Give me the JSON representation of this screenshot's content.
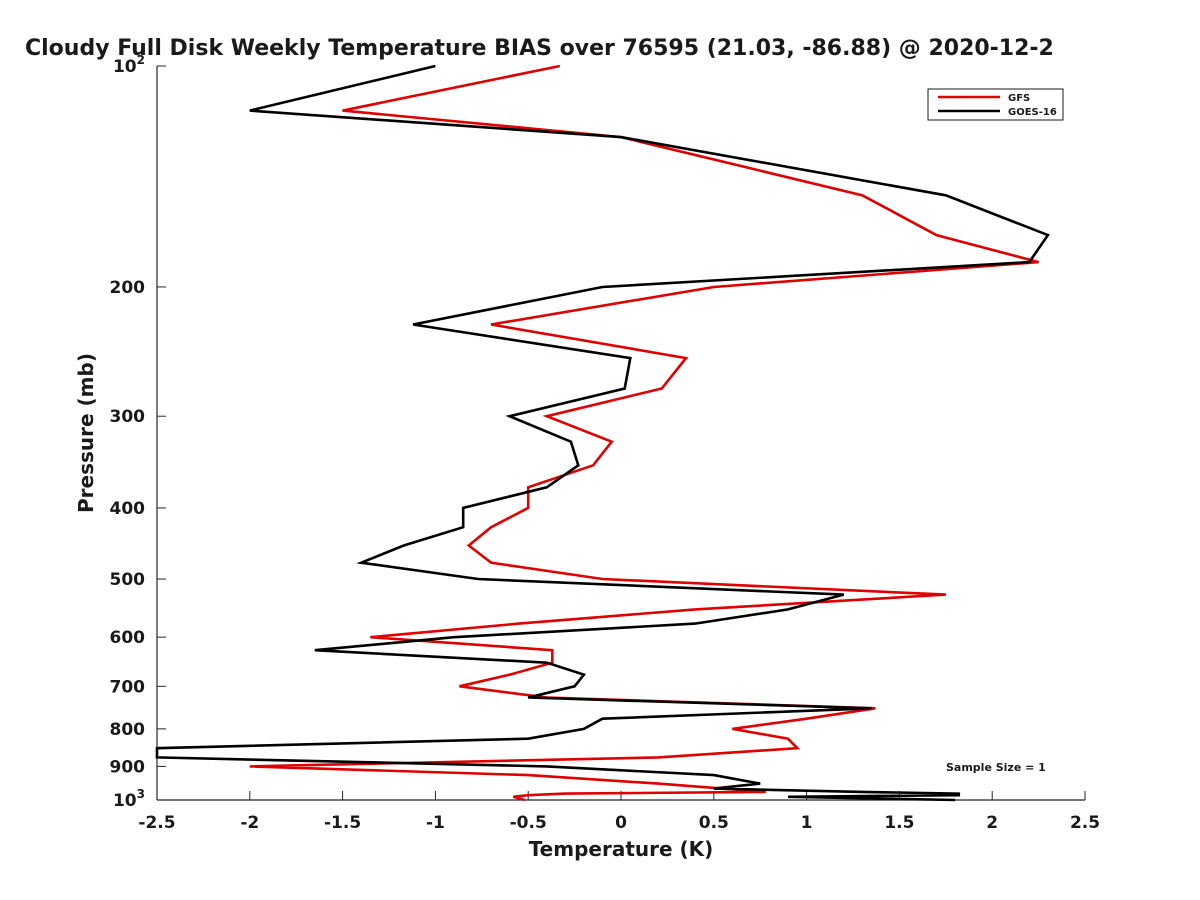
{
  "chart_data": {
    "type": "line",
    "title": "Cloudy Full Disk Weekly Temperature BIAS over 76595 (21.03, -86.88) @ 2020-12-2",
    "xlabel": "Temperature (K)",
    "ylabel": "Pressure (mb)",
    "xlim": [
      -2.5,
      2.5
    ],
    "ylim": [
      100,
      1000
    ],
    "y_scale": "log",
    "y_reversed": true,
    "x_ticks": [
      -2.5,
      -2,
      -1.5,
      -1,
      -0.5,
      0,
      0.5,
      1,
      1.5,
      2,
      2.5
    ],
    "x_tick_labels": [
      "-2.5",
      "-2",
      "-1.5",
      "-1",
      "-0.5",
      "0",
      "0.5",
      "1",
      "1.5",
      "2",
      "2.5"
    ],
    "y_ticks": [
      200,
      300,
      400,
      500,
      600,
      700,
      800,
      900
    ],
    "y_tick_labels": [
      "200",
      "300",
      "400",
      "500",
      "600",
      "700",
      "800",
      "900"
    ],
    "y_end_ticks": [
      {
        "value": 100,
        "base": "10",
        "exp": "2"
      },
      {
        "value": 1000,
        "base": "10",
        "exp": "3"
      }
    ],
    "legend": {
      "position": "top-right"
    },
    "annotation": "Sample Size = 1",
    "grid": false,
    "series": [
      {
        "name": "GFS",
        "color": "#e00000",
        "points": [
          [
            -0.33,
            100
          ],
          [
            -1.5,
            115
          ],
          [
            0.0,
            125
          ],
          [
            1.3,
            150
          ],
          [
            1.7,
            170
          ],
          [
            2.25,
            185
          ],
          [
            0.5,
            200
          ],
          [
            -0.7,
            225
          ],
          [
            0.35,
            250
          ],
          [
            0.22,
            275
          ],
          [
            -0.4,
            300
          ],
          [
            -0.05,
            325
          ],
          [
            -0.15,
            350
          ],
          [
            -0.5,
            375
          ],
          [
            -0.5,
            400
          ],
          [
            -0.7,
            425
          ],
          [
            -0.82,
            450
          ],
          [
            -0.7,
            475
          ],
          [
            -0.1,
            500
          ],
          [
            1.75,
            525
          ],
          [
            0.4,
            550
          ],
          [
            -0.55,
            575
          ],
          [
            -1.35,
            600
          ],
          [
            -0.37,
            625
          ],
          [
            -0.37,
            650
          ],
          [
            -0.6,
            675
          ],
          [
            -0.87,
            700
          ],
          [
            -0.4,
            725
          ],
          [
            1.37,
            750
          ],
          [
            1.0,
            775
          ],
          [
            0.6,
            800
          ],
          [
            0.9,
            825
          ],
          [
            0.95,
            850
          ],
          [
            0.2,
            875
          ],
          [
            -2.0,
            900
          ],
          [
            -0.5,
            925
          ],
          [
            0.2,
            950
          ],
          [
            0.78,
            975
          ],
          [
            -0.3,
            980
          ],
          [
            -0.5,
            985
          ],
          [
            -0.58,
            990
          ],
          [
            -0.55,
            995
          ],
          [
            -0.52,
            1000
          ]
        ]
      },
      {
        "name": "GOES-16",
        "color": "#000000",
        "points": [
          [
            -1.0,
            100
          ],
          [
            -2.0,
            115
          ],
          [
            0.0,
            125
          ],
          [
            1.75,
            150
          ],
          [
            2.3,
            170
          ],
          [
            2.2,
            185
          ],
          [
            -0.1,
            200
          ],
          [
            -1.12,
            225
          ],
          [
            0.05,
            250
          ],
          [
            0.02,
            275
          ],
          [
            -0.6,
            300
          ],
          [
            -0.27,
            325
          ],
          [
            -0.23,
            350
          ],
          [
            -0.4,
            375
          ],
          [
            -0.85,
            400
          ],
          [
            -0.85,
            425
          ],
          [
            -1.17,
            450
          ],
          [
            -1.4,
            475
          ],
          [
            -0.77,
            500
          ],
          [
            1.2,
            525
          ],
          [
            0.9,
            550
          ],
          [
            0.4,
            575
          ],
          [
            -0.9,
            600
          ],
          [
            -1.65,
            625
          ],
          [
            -0.4,
            650
          ],
          [
            -0.2,
            675
          ],
          [
            -0.25,
            700
          ],
          [
            -0.5,
            725
          ],
          [
            1.35,
            750
          ],
          [
            -0.1,
            775
          ],
          [
            -0.2,
            800
          ],
          [
            -0.5,
            825
          ],
          [
            -2.5,
            850
          ],
          [
            -2.5,
            875
          ],
          [
            -0.4,
            900
          ],
          [
            0.5,
            925
          ],
          [
            0.75,
            950
          ],
          [
            0.5,
            965
          ],
          [
            1.3,
            975
          ],
          [
            1.82,
            980
          ],
          [
            1.82,
            985
          ],
          [
            0.9,
            990
          ],
          [
            1.8,
            1000
          ]
        ]
      }
    ]
  }
}
